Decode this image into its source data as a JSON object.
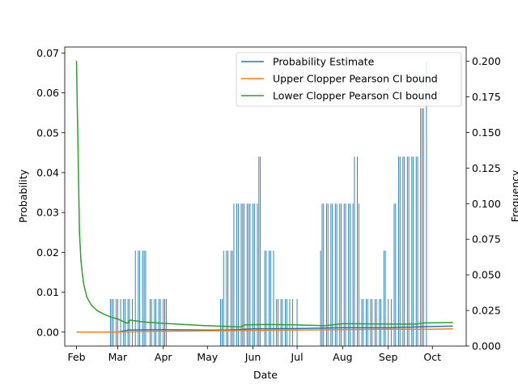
{
  "chart_data": {
    "type": "line",
    "xlabel": "Date",
    "ylabel_left": "Probability",
    "ylabel_right": "Frequency",
    "x_ticks": [
      {
        "label": "Feb",
        "date": "2023-02-01"
      },
      {
        "label": "Mar",
        "date": "2023-03-01"
      },
      {
        "label": "Apr",
        "date": "2023-04-01"
      },
      {
        "label": "May",
        "date": "2023-05-01"
      },
      {
        "label": "Jun",
        "date": "2023-06-01"
      },
      {
        "label": "Jul",
        "date": "2023-07-01"
      },
      {
        "label": "Aug",
        "date": "2023-08-01"
      },
      {
        "label": "Sep",
        "date": "2023-09-01"
      },
      {
        "label": "Oct",
        "date": "2023-10-01"
      }
    ],
    "xlim": [
      "2023-01-24",
      "2023-10-24"
    ],
    "ylim_left": [
      -0.0035,
      0.0715
    ],
    "ylim_right": [
      0.0,
      0.21
    ],
    "y_ticks_left": [
      "0.00",
      "0.01",
      "0.02",
      "0.03",
      "0.04",
      "0.05",
      "0.06",
      "0.07"
    ],
    "y_ticks_right": [
      "0.000",
      "0.025",
      "0.050",
      "0.075",
      "0.100",
      "0.125",
      "0.150",
      "0.175",
      "0.200"
    ],
    "legend_position": "top-right",
    "legend": [
      {
        "label": "Probability Estimate",
        "color": "#1f77b4"
      },
      {
        "label": "Upper Clopper Pearson CI bound",
        "color": "#ff7f0e"
      },
      {
        "label": "Lower Clopper Pearson CI bound",
        "color": "#2ca02c"
      }
    ],
    "frequency_spikes": {
      "axis": "right",
      "color": "#1f77b4",
      "points": [
        [
          "2023-02-24",
          0.033
        ],
        [
          "2023-02-25",
          0.033
        ],
        [
          "2023-02-26",
          0.033
        ],
        [
          "2023-02-28",
          0.033
        ],
        [
          "2023-03-01",
          0.033
        ],
        [
          "2023-03-03",
          0.033
        ],
        [
          "2023-03-05",
          0.033
        ],
        [
          "2023-03-06",
          0.033
        ],
        [
          "2023-03-08",
          0.033
        ],
        [
          "2023-03-09",
          0.033
        ],
        [
          "2023-03-11",
          0.033
        ],
        [
          "2023-03-13",
          0.067
        ],
        [
          "2023-03-15",
          0.067
        ],
        [
          "2023-03-16",
          0.067
        ],
        [
          "2023-03-18",
          0.067
        ],
        [
          "2023-03-19",
          0.067
        ],
        [
          "2023-03-20",
          0.067
        ],
        [
          "2023-03-23",
          0.033
        ],
        [
          "2023-03-24",
          0.033
        ],
        [
          "2023-03-26",
          0.033
        ],
        [
          "2023-03-27",
          0.033
        ],
        [
          "2023-03-29",
          0.033
        ],
        [
          "2023-03-30",
          0.033
        ],
        [
          "2023-04-01",
          0.033
        ],
        [
          "2023-04-02",
          0.033
        ],
        [
          "2023-04-03",
          0.033
        ],
        [
          "2023-05-10",
          0.033
        ],
        [
          "2023-05-11",
          0.033
        ],
        [
          "2023-05-12",
          0.067
        ],
        [
          "2023-05-14",
          0.067
        ],
        [
          "2023-05-15",
          0.067
        ],
        [
          "2023-05-17",
          0.067
        ],
        [
          "2023-05-18",
          0.067
        ],
        [
          "2023-05-19",
          0.1
        ],
        [
          "2023-05-21",
          0.1
        ],
        [
          "2023-05-22",
          0.1
        ],
        [
          "2023-05-24",
          0.1
        ],
        [
          "2023-05-25",
          0.1
        ],
        [
          "2023-05-26",
          0.1
        ],
        [
          "2023-05-28",
          0.1
        ],
        [
          "2023-05-29",
          0.1
        ],
        [
          "2023-05-30",
          0.1
        ],
        [
          "2023-06-01",
          0.1
        ],
        [
          "2023-06-02",
          0.1
        ],
        [
          "2023-06-04",
          0.1
        ],
        [
          "2023-06-05",
          0.133
        ],
        [
          "2023-06-06",
          0.133
        ],
        [
          "2023-06-09",
          0.067
        ],
        [
          "2023-06-10",
          0.067
        ],
        [
          "2023-06-12",
          0.067
        ],
        [
          "2023-06-13",
          0.067
        ],
        [
          "2023-06-15",
          0.067
        ],
        [
          "2023-06-17",
          0.033
        ],
        [
          "2023-06-18",
          0.033
        ],
        [
          "2023-06-20",
          0.033
        ],
        [
          "2023-06-21",
          0.033
        ],
        [
          "2023-06-23",
          0.033
        ],
        [
          "2023-06-24",
          0.033
        ],
        [
          "2023-06-26",
          0.033
        ],
        [
          "2023-06-28",
          0.033
        ],
        [
          "2023-07-01",
          0.033
        ],
        [
          "2023-07-17",
          0.067
        ],
        [
          "2023-07-18",
          0.1
        ],
        [
          "2023-07-19",
          0.1
        ],
        [
          "2023-07-21",
          0.1
        ],
        [
          "2023-07-22",
          0.1
        ],
        [
          "2023-07-24",
          0.1
        ],
        [
          "2023-07-25",
          0.1
        ],
        [
          "2023-07-27",
          0.1
        ],
        [
          "2023-07-28",
          0.1
        ],
        [
          "2023-07-30",
          0.1
        ],
        [
          "2023-07-31",
          0.1
        ],
        [
          "2023-08-02",
          0.1
        ],
        [
          "2023-08-03",
          0.1
        ],
        [
          "2023-08-05",
          0.1
        ],
        [
          "2023-08-06",
          0.1
        ],
        [
          "2023-08-08",
          0.1
        ],
        [
          "2023-08-09",
          0.133
        ],
        [
          "2023-08-11",
          0.133
        ],
        [
          "2023-08-12",
          0.1
        ],
        [
          "2023-08-14",
          0.033
        ],
        [
          "2023-08-15",
          0.033
        ],
        [
          "2023-08-17",
          0.033
        ],
        [
          "2023-08-18",
          0.033
        ],
        [
          "2023-08-20",
          0.033
        ],
        [
          "2023-08-21",
          0.033
        ],
        [
          "2023-08-23",
          0.033
        ],
        [
          "2023-08-24",
          0.033
        ],
        [
          "2023-08-26",
          0.033
        ],
        [
          "2023-08-27",
          0.033
        ],
        [
          "2023-08-29",
          0.067
        ],
        [
          "2023-08-30",
          0.067
        ],
        [
          "2023-09-01",
          0.033
        ],
        [
          "2023-09-03",
          0.033
        ],
        [
          "2023-09-05",
          0.1
        ],
        [
          "2023-09-06",
          0.1
        ],
        [
          "2023-09-08",
          0.133
        ],
        [
          "2023-09-09",
          0.133
        ],
        [
          "2023-09-11",
          0.133
        ],
        [
          "2023-09-12",
          0.133
        ],
        [
          "2023-09-14",
          0.133
        ],
        [
          "2023-09-15",
          0.133
        ],
        [
          "2023-09-17",
          0.133
        ],
        [
          "2023-09-18",
          0.133
        ],
        [
          "2023-09-20",
          0.133
        ],
        [
          "2023-09-21",
          0.133
        ],
        [
          "2023-09-23",
          0.167
        ],
        [
          "2023-09-24",
          0.167
        ],
        [
          "2023-09-25",
          0.167
        ],
        [
          "2023-09-27",
          0.2
        ]
      ]
    },
    "series": [
      {
        "label": "Probability Estimate",
        "axis": "left",
        "color": "#1f77b4",
        "points": [
          [
            "2023-02-01",
            0.0
          ],
          [
            "2023-03-01",
            0.0
          ],
          [
            "2023-03-08",
            0.0005
          ],
          [
            "2023-04-01",
            0.0006
          ],
          [
            "2023-05-01",
            0.0005
          ],
          [
            "2023-05-15",
            0.0005
          ],
          [
            "2023-06-01",
            0.0008
          ],
          [
            "2023-07-01",
            0.0009
          ],
          [
            "2023-08-01",
            0.0011
          ],
          [
            "2023-09-01",
            0.0011
          ],
          [
            "2023-10-01",
            0.0014
          ],
          [
            "2023-10-15",
            0.0015
          ]
        ]
      },
      {
        "label": "Upper Clopper Pearson CI bound",
        "axis": "left",
        "color": "#ff7f0e",
        "points": [
          [
            "2023-02-01",
            0.0
          ],
          [
            "2023-03-01",
            0.0
          ],
          [
            "2023-04-01",
            0.0002
          ],
          [
            "2023-05-01",
            0.0003
          ],
          [
            "2023-06-01",
            0.0004
          ],
          [
            "2023-07-01",
            0.0005
          ],
          [
            "2023-08-01",
            0.0006
          ],
          [
            "2023-09-01",
            0.0007
          ],
          [
            "2023-10-01",
            0.0007
          ],
          [
            "2023-10-15",
            0.0008
          ]
        ]
      },
      {
        "label": "Lower Clopper Pearson CI bound",
        "axis": "left",
        "color": "#2ca02c",
        "points": [
          [
            "2023-02-01",
            0.068
          ],
          [
            "2023-02-02",
            0.046
          ],
          [
            "2023-02-03",
            0.025
          ],
          [
            "2023-02-04",
            0.018
          ],
          [
            "2023-02-05",
            0.0145
          ],
          [
            "2023-02-06",
            0.0118
          ],
          [
            "2023-02-08",
            0.0088
          ],
          [
            "2023-02-11",
            0.0068
          ],
          [
            "2023-02-15",
            0.0054
          ],
          [
            "2023-02-20",
            0.0044
          ],
          [
            "2023-02-25",
            0.0037
          ],
          [
            "2023-03-01",
            0.0033
          ],
          [
            "2023-03-05",
            0.0026
          ],
          [
            "2023-03-08",
            0.0022
          ],
          [
            "2023-03-09",
            0.003
          ],
          [
            "2023-03-20",
            0.0025
          ],
          [
            "2023-04-01",
            0.0022
          ],
          [
            "2023-05-01",
            0.0016
          ],
          [
            "2023-05-24",
            0.0013
          ],
          [
            "2023-05-26",
            0.0018
          ],
          [
            "2023-06-10",
            0.0019
          ],
          [
            "2023-07-01",
            0.0018
          ],
          [
            "2023-07-20",
            0.0016
          ],
          [
            "2023-08-01",
            0.0021
          ],
          [
            "2023-09-01",
            0.002
          ],
          [
            "2023-09-20",
            0.002
          ],
          [
            "2023-09-25",
            0.0023
          ],
          [
            "2023-10-15",
            0.0024
          ]
        ]
      }
    ]
  }
}
